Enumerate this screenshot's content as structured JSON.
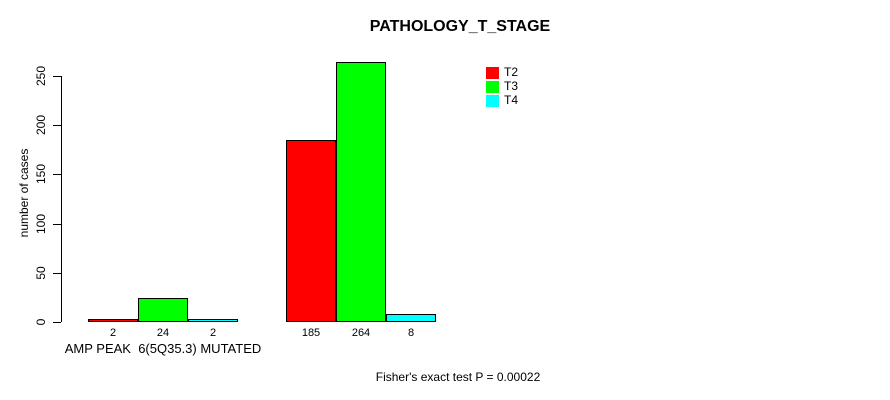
{
  "title": "PATHOLOGY_T_STAGE",
  "y_axis": {
    "label": "number of cases",
    "ticks": [
      0,
      50,
      100,
      150,
      200,
      250
    ]
  },
  "legend": {
    "items": [
      {
        "label": "T2",
        "color": "#ff0000"
      },
      {
        "label": "T3",
        "color": "#00ff00"
      },
      {
        "label": "T4",
        "color": "#00ffff"
      }
    ]
  },
  "footer": "Fisher's exact test P = 0.00022",
  "chart_data": {
    "type": "bar",
    "title": "PATHOLOGY_T_STAGE",
    "xlabel": "",
    "ylabel": "number of cases",
    "ylim": [
      0,
      250
    ],
    "yticks": [
      0,
      50,
      100,
      150,
      200,
      250
    ],
    "grid": false,
    "legend_position": "top-right-inside",
    "categories": [
      "AMP PEAK  6(5Q35.3) MUTATED",
      ""
    ],
    "series": [
      {
        "name": "T2",
        "color": "#ff0000",
        "values": [
          2,
          185
        ]
      },
      {
        "name": "T3",
        "color": "#00ff00",
        "values": [
          24,
          264
        ]
      },
      {
        "name": "T4",
        "color": "#00ffff",
        "values": [
          2,
          8
        ]
      }
    ],
    "bar_value_labels": [
      [
        2,
        24,
        2
      ],
      [
        185,
        264,
        8
      ]
    ],
    "annotation": "Fisher's exact test P = 0.00022"
  }
}
